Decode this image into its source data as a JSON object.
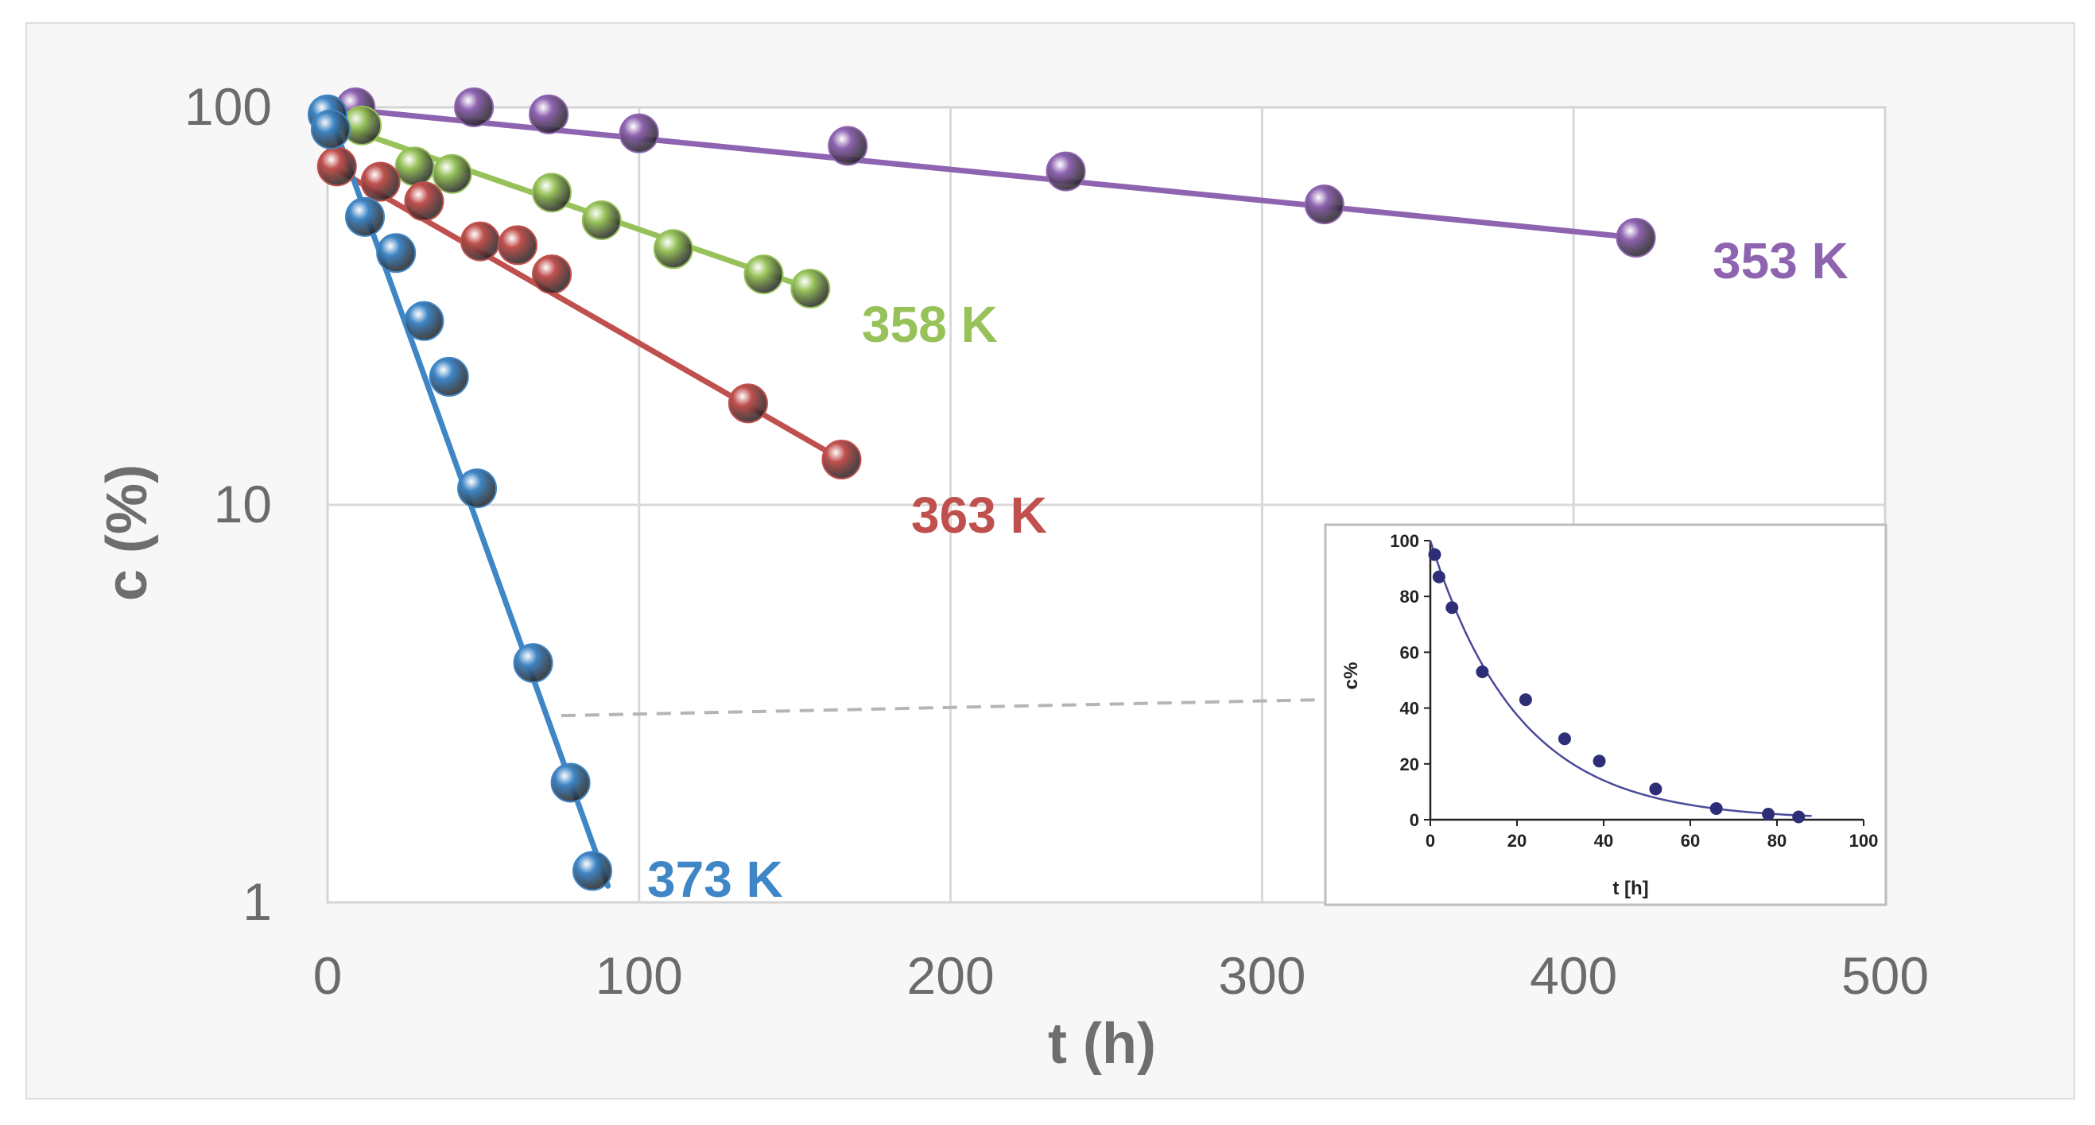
{
  "chart_data": [
    {
      "type": "scatter",
      "title": "",
      "xlabel": "t (h)",
      "ylabel": "c (%)",
      "xlim": [
        0,
        500
      ],
      "ylim": [
        1,
        100
      ],
      "yscale": "log",
      "xticks": [
        "0",
        "100",
        "200",
        "300",
        "400",
        "500"
      ],
      "yticks": [
        "1",
        "10",
        "100"
      ],
      "grid": true,
      "series": [
        {
          "name": "353 K",
          "color": "#8e63b0",
          "fit": [
            [
              0,
              100
            ],
            [
              420,
              47
            ]
          ],
          "points": [
            [
              9,
              100
            ],
            [
              47,
              100
            ],
            [
              71,
              96
            ],
            [
              100,
              86
            ],
            [
              167,
              80
            ],
            [
              237,
              69
            ],
            [
              320,
              57
            ],
            [
              420,
              47
            ]
          ]
        },
        {
          "name": "358 K",
          "color": "#97c25a",
          "fit": [
            [
              0,
              92
            ],
            [
              155,
              35
            ]
          ],
          "points": [
            [
              11,
              90
            ],
            [
              28,
              71
            ],
            [
              40,
              68
            ],
            [
              72,
              61
            ],
            [
              88,
              52
            ],
            [
              111,
              44
            ],
            [
              140,
              38
            ],
            [
              155,
              35
            ]
          ]
        },
        {
          "name": "363 K",
          "color": "#c0504d",
          "fit": [
            [
              0,
              72
            ],
            [
              165,
              13
            ]
          ],
          "points": [
            [
              3,
              71
            ],
            [
              17,
              65
            ],
            [
              31,
              58
            ],
            [
              49,
              46
            ],
            [
              61,
              45
            ],
            [
              72,
              38
            ],
            [
              135,
              18
            ],
            [
              165,
              13
            ]
          ]
        },
        {
          "name": "373 K",
          "color": "#3f86c6",
          "fit": [
            [
              0,
              100
            ],
            [
              90,
              1.1
            ]
          ],
          "points": [
            [
              0,
              96
            ],
            [
              1,
              88
            ],
            [
              12,
              53
            ],
            [
              22,
              43
            ],
            [
              31,
              29
            ],
            [
              39,
              21
            ],
            [
              48,
              11
            ],
            [
              66,
              4
            ],
            [
              78,
              2
            ],
            [
              85,
              1.2
            ]
          ]
        }
      ]
    },
    {
      "type": "scatter",
      "title": "",
      "xlabel": "t [h]",
      "ylabel": "c%",
      "xlim": [
        0,
        100
      ],
      "ylim": [
        0,
        100
      ],
      "xticks": [
        "0",
        "20",
        "40",
        "60",
        "80",
        "100"
      ],
      "yticks": [
        "0",
        "20",
        "40",
        "60",
        "80",
        "100"
      ],
      "series": [
        {
          "name": "373 K",
          "color": "#2e2e78",
          "points": [
            [
              1,
              95
            ],
            [
              2,
              87
            ],
            [
              5,
              76
            ],
            [
              12,
              53
            ],
            [
              22,
              43
            ],
            [
              31,
              29
            ],
            [
              39,
              21
            ],
            [
              52,
              11
            ],
            [
              66,
              4
            ],
            [
              78,
              2
            ],
            [
              85,
              1
            ]
          ],
          "fit_rate": 0.049,
          "fit_c0": 100
        }
      ]
    }
  ]
}
